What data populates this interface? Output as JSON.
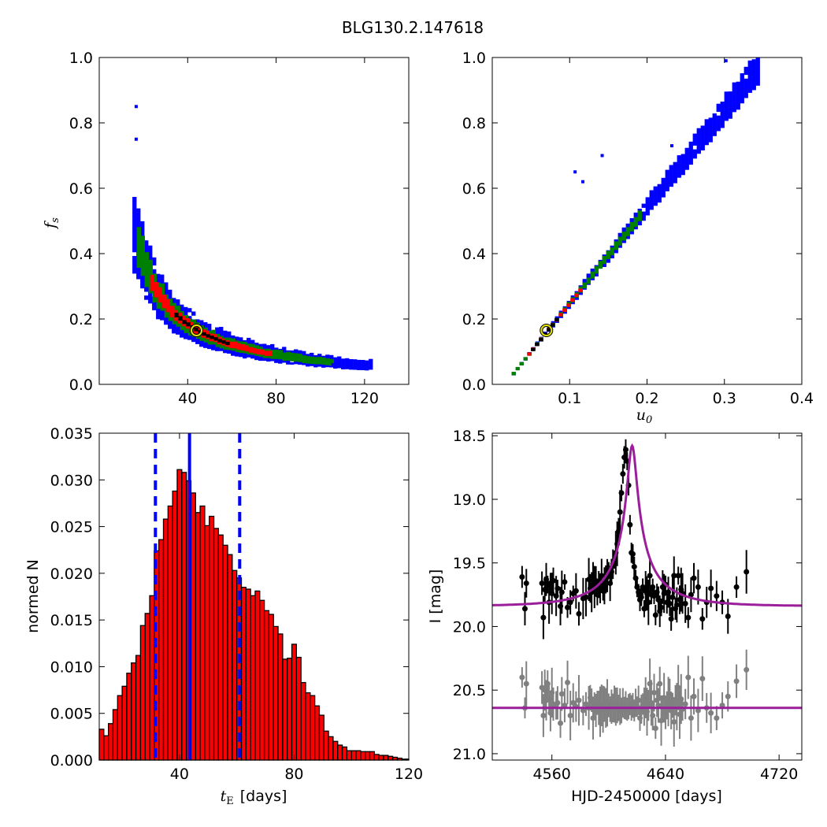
{
  "figure_title": "BLG130.2.147618",
  "colors": {
    "outer": "#0000ff",
    "middle": "#008000",
    "inner": "#ff0000",
    "core": "#000000",
    "best": "#e6e600",
    "model": "#9b1f9b",
    "data_main": "#000000",
    "data_second": "#808080",
    "hist_fill": "#ff0000"
  },
  "chart_data": [
    {
      "type": "heatmap",
      "panel": "top-left",
      "xlim": [
        0,
        140
      ],
      "ylim": [
        0.0,
        1.0
      ],
      "x_ticks": [
        "40",
        "80",
        "120"
      ],
      "x_tick_values": [
        40,
        80,
        120
      ],
      "y_ticks": [
        "0.0",
        "0.2",
        "0.4",
        "0.6",
        "0.8",
        "1.0"
      ],
      "y_tick_values": [
        0,
        0.2,
        0.4,
        0.6,
        0.8,
        1.0
      ],
      "xlabel": "",
      "ylabel": "f_s",
      "ylabel_base": "f",
      "ylabel_sub": "s",
      "curve": "f_s ≈ 7.2 / tE",
      "levels": [
        {
          "name": "outer",
          "x": [
            15,
            122
          ],
          "width_frac": 0.26
        },
        {
          "name": "middle",
          "x": [
            17,
            105
          ],
          "width_frac": 0.15
        },
        {
          "name": "inner",
          "x": [
            23,
            78
          ],
          "width_frac": 0.08
        },
        {
          "name": "core",
          "x": [
            34,
            58
          ],
          "width_frac": 0.03
        }
      ],
      "best_fit": {
        "x": 44,
        "y": 0.165
      }
    },
    {
      "type": "heatmap",
      "panel": "top-right",
      "xlim": [
        0.0,
        0.4
      ],
      "ylim": [
        0.0,
        1.0
      ],
      "x_ticks": [
        "0.1",
        "0.2",
        "0.3",
        "0.4"
      ],
      "x_tick_values": [
        0.1,
        0.2,
        0.3,
        0.4
      ],
      "y_ticks": [
        "0.0",
        "0.2",
        "0.4",
        "0.6",
        "0.8",
        "1.0"
      ],
      "y_tick_values": [
        0,
        0.2,
        0.4,
        0.6,
        0.8,
        1.0
      ],
      "xlabel": "u_0",
      "xlabel_base": "u",
      "xlabel_sub": "0",
      "ylabel": "",
      "curve": "f_s ≈ 2.95 * u0 - 0.04",
      "levels": [
        {
          "name": "outer",
          "x": [
            0.025,
            0.345
          ],
          "width_frac": 0.05
        },
        {
          "name": "middle",
          "x": [
            0.025,
            0.19
          ],
          "width_frac": 0.03
        },
        {
          "name": "inner",
          "x": [
            0.045,
            0.115
          ],
          "width_frac": 0.015
        },
        {
          "name": "core",
          "x": [
            0.05,
            0.085
          ],
          "width_frac": 0.006
        }
      ],
      "best_fit": {
        "x": 0.07,
        "y": 0.165
      }
    },
    {
      "type": "bar",
      "panel": "bottom-left",
      "xlim": [
        12,
        120
      ],
      "ylim": [
        0.0,
        0.035
      ],
      "x_ticks": [
        "40",
        "80",
        "120"
      ],
      "x_tick_values": [
        40,
        80,
        120
      ],
      "y_ticks": [
        "0.000",
        "0.005",
        "0.010",
        "0.015",
        "0.020",
        "0.025",
        "0.030",
        "0.035"
      ],
      "y_tick_values": [
        0,
        0.005,
        0.01,
        0.015,
        0.02,
        0.025,
        0.03,
        0.035
      ],
      "xlabel": "t_E  [days]",
      "xlabel_base": "t",
      "xlabel_sub": "E",
      "xlabel_unit": "[days]",
      "ylabel": "normed N",
      "bin_start": 12,
      "bin_width": 1.6,
      "values": [
        0.0033,
        0.0026,
        0.0039,
        0.0054,
        0.0069,
        0.0079,
        0.0093,
        0.0104,
        0.0112,
        0.0144,
        0.0157,
        0.0176,
        0.0224,
        0.0236,
        0.0258,
        0.0272,
        0.0288,
        0.0311,
        0.0308,
        0.0299,
        0.0286,
        0.0265,
        0.0272,
        0.0251,
        0.0261,
        0.0248,
        0.0241,
        0.023,
        0.022,
        0.0203,
        0.0195,
        0.0185,
        0.0183,
        0.0176,
        0.0181,
        0.0171,
        0.016,
        0.0156,
        0.0143,
        0.0135,
        0.0108,
        0.0109,
        0.0124,
        0.011,
        0.0083,
        0.0072,
        0.0069,
        0.0058,
        0.0048,
        0.0031,
        0.0025,
        0.002,
        0.0016,
        0.0014,
        0.001,
        0.001,
        0.001,
        0.0009,
        0.0009,
        0.0009,
        0.0006,
        0.0005,
        0.0005,
        0.0004,
        0.0003,
        0.0002,
        0.0001,
        0.0001
      ],
      "vlines": [
        {
          "x": 31.6,
          "style": "dashed"
        },
        {
          "x": 43.5,
          "style": "solid"
        },
        {
          "x": 61.0,
          "style": "dashed"
        }
      ]
    },
    {
      "type": "scatter",
      "panel": "bottom-right",
      "xlim": [
        4518,
        4736
      ],
      "ylim": [
        21.05,
        18.48
      ],
      "x_ticks": [
        "4560",
        "4640",
        "4720"
      ],
      "x_tick_values": [
        4560,
        4640,
        4720
      ],
      "y_ticks": [
        "18.5",
        "19.0",
        "19.5",
        "20.0",
        "20.5",
        "21.0"
      ],
      "y_tick_values": [
        18.5,
        19.0,
        19.5,
        20.0,
        20.5,
        21.0
      ],
      "xlabel": "HJD-2450000 [days]",
      "ylabel": "I [mag]",
      "model": {
        "t0": 4616.5,
        "base_mag": 19.84,
        "peak_mag": 18.62,
        "tE": 43.5,
        "u0": 0.07,
        "fs": 0.165
      },
      "series": [
        {
          "role": "main",
          "baseline_mag": 19.84
        },
        {
          "role": "second",
          "baseline_mag": 20.64
        }
      ],
      "x": [
        4539,
        4541,
        4542,
        4553,
        4554,
        4555,
        4556,
        4557,
        4558,
        4559,
        4560,
        4561,
        4563,
        4564,
        4566,
        4567,
        4569,
        4571,
        4573,
        4575,
        4577,
        4579,
        4582,
        4584,
        4586,
        4587,
        4588,
        4589,
        4590,
        4591,
        4592,
        4593,
        4594,
        4595,
        4596,
        4597,
        4598,
        4599,
        4600,
        4601,
        4602,
        4603,
        4604,
        4605,
        4606,
        4607,
        4608,
        4609,
        4610,
        4611,
        4612,
        4613,
        4614,
        4615,
        4616,
        4617,
        4618,
        4619,
        4620,
        4621,
        4622,
        4623,
        4624,
        4625,
        4626,
        4627,
        4628,
        4629,
        4630,
        4631,
        4632,
        4633,
        4634,
        4635,
        4636,
        4637,
        4638,
        4639,
        4640,
        4641,
        4642,
        4643,
        4644,
        4645,
        4646,
        4647,
        4648,
        4649,
        4650,
        4651,
        4652,
        4654,
        4656,
        4658,
        4660,
        4663,
        4666,
        4669,
        4672,
        4676,
        4680,
        4684,
        4690,
        4697
      ],
      "y_main": [
        19.61,
        19.86,
        19.66,
        19.66,
        19.93,
        19.71,
        19.63,
        19.67,
        19.81,
        19.66,
        19.74,
        19.64,
        19.76,
        19.7,
        19.84,
        19.73,
        19.65,
        19.85,
        19.81,
        19.74,
        19.72,
        19.9,
        19.78,
        19.77,
        19.63,
        19.7,
        19.73,
        19.62,
        19.69,
        19.64,
        19.75,
        19.67,
        19.7,
        19.6,
        19.72,
        19.68,
        19.63,
        19.6,
        19.56,
        19.66,
        19.57,
        19.51,
        19.48,
        19.42,
        19.35,
        19.25,
        19.1,
        18.95,
        18.8,
        18.67,
        18.61,
        18.7,
        18.89,
        19.2,
        19.42,
        19.43,
        19.53,
        19.62,
        19.69,
        19.73,
        19.79,
        19.77,
        19.69,
        19.86,
        19.72,
        19.74,
        19.81,
        19.6,
        19.75,
        19.69,
        19.76,
        19.91,
        19.73,
        19.79,
        19.88,
        19.85,
        19.69,
        19.74,
        19.67,
        19.81,
        19.73,
        19.82,
        19.94,
        19.77,
        19.6,
        19.86,
        19.83,
        19.6,
        19.79,
        19.71,
        19.74,
        19.82,
        19.93,
        19.75,
        19.62,
        19.69,
        19.94,
        19.81,
        19.7,
        19.76,
        19.81,
        19.92,
        19.69,
        19.57
      ],
      "y_second": [
        20.4,
        20.64,
        20.45,
        20.48,
        20.7,
        20.5,
        20.58,
        20.45,
        20.57,
        20.68,
        20.52,
        20.61,
        20.62,
        20.6,
        20.76,
        20.53,
        20.62,
        20.44,
        20.7,
        20.6,
        20.63,
        20.58,
        20.66,
        20.61,
        20.64,
        20.56,
        20.58,
        20.72,
        20.62,
        20.66,
        20.6,
        20.64,
        20.67,
        20.62,
        20.65,
        20.61,
        20.64,
        20.6,
        20.62,
        20.65,
        20.63,
        20.64,
        20.61,
        20.63,
        20.62,
        20.64,
        20.63,
        20.66,
        20.6,
        20.64,
        20.62,
        20.65,
        20.63,
        20.61,
        20.64,
        20.62,
        20.66,
        20.6,
        20.63,
        20.58,
        20.72,
        20.65,
        20.61,
        20.63,
        20.56,
        20.67,
        20.62,
        20.45,
        20.6,
        20.7,
        20.52,
        20.8,
        20.58,
        20.62,
        20.45,
        20.74,
        20.64,
        20.56,
        20.68,
        20.62,
        20.59,
        20.54,
        20.66,
        20.62,
        20.75,
        20.58,
        20.63,
        20.48,
        20.69,
        20.57,
        20.65,
        20.61,
        20.4,
        20.72,
        20.55,
        20.66,
        20.41,
        20.64,
        20.68,
        20.72,
        20.62,
        20.55,
        20.43,
        20.34
      ]
    }
  ]
}
